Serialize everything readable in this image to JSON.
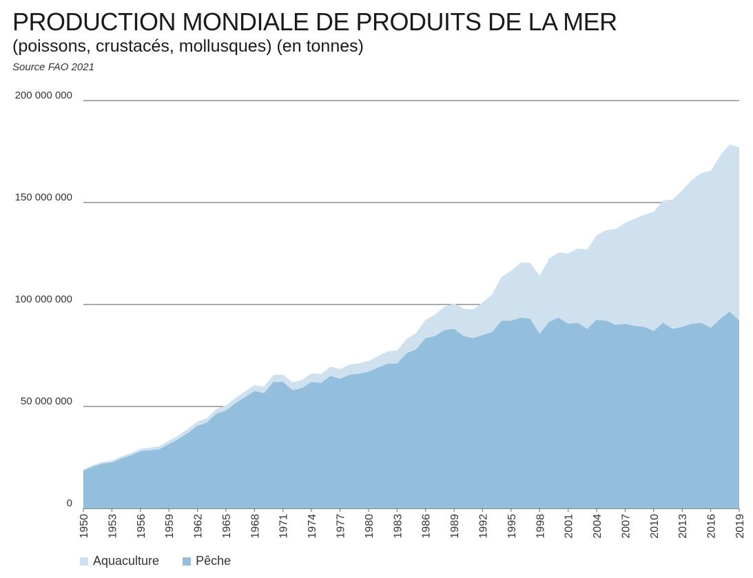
{
  "header": {
    "title": "PRODUCTION MONDIALE DE PRODUITS DE LA MER",
    "subtitle": "(poissons, crustacés, mollusques) (en tonnes)",
    "source": "Source FAO 2021"
  },
  "chart_data": {
    "type": "area",
    "stacked": true,
    "x": [
      1950,
      1951,
      1952,
      1953,
      1954,
      1955,
      1956,
      1957,
      1958,
      1959,
      1960,
      1961,
      1962,
      1963,
      1964,
      1965,
      1966,
      1967,
      1968,
      1969,
      1970,
      1971,
      1972,
      1973,
      1974,
      1975,
      1976,
      1977,
      1978,
      1979,
      1980,
      1981,
      1982,
      1983,
      1984,
      1985,
      1986,
      1987,
      1988,
      1989,
      1990,
      1991,
      1992,
      1993,
      1994,
      1995,
      1996,
      1997,
      1998,
      1999,
      2000,
      2001,
      2002,
      2003,
      2004,
      2005,
      2006,
      2007,
      2008,
      2009,
      2010,
      2011,
      2012,
      2013,
      2014,
      2015,
      2016,
      2017,
      2018,
      2019
    ],
    "x_tick_labels": [
      "1950",
      "1953",
      "1956",
      "1959",
      "1962",
      "1965",
      "1968",
      "1971",
      "1974",
      "1977",
      "1980",
      "1983",
      "1986",
      "1989",
      "1992",
      "1995",
      "1998",
      "2001",
      "2004",
      "2007",
      "2010",
      "2013",
      "2016",
      "2019"
    ],
    "y_tick_labels": [
      "0",
      "50 000 000",
      "100 000 000",
      "150 000 000",
      "200 000 000"
    ],
    "ylim": [
      0,
      200000000
    ],
    "grid": "horizontal",
    "legend_position": "bottom-left",
    "series": [
      {
        "name": "Pêche",
        "color": "#93bfdd",
        "values": [
          18500000,
          20500000,
          22000000,
          22500000,
          24500000,
          26000000,
          28000000,
          28500000,
          29000000,
          31500000,
          34000000,
          37000000,
          40500000,
          42000000,
          46500000,
          48000000,
          51500000,
          54500000,
          57500000,
          56500000,
          62000000,
          62000000,
          58000000,
          59000000,
          62000000,
          61500000,
          65000000,
          63500000,
          65500000,
          66000000,
          67000000,
          69000000,
          71000000,
          71000000,
          76000000,
          78000000,
          83500000,
          84500000,
          87500000,
          88000000,
          84500000,
          83500000,
          85000000,
          86500000,
          92000000,
          92000000,
          93500000,
          93000000,
          85500000,
          91500000,
          93500000,
          90500000,
          91000000,
          88000000,
          92500000,
          92000000,
          90000000,
          90500000,
          89500000,
          89000000,
          87000000,
          91000000,
          88000000,
          89000000,
          90500000,
          91000000,
          88500000,
          93000000,
          96500000,
          92000000
        ]
      },
      {
        "name": "Aquaculture",
        "color": "#cfe0ef",
        "values": [
          600000,
          700000,
          800000,
          900000,
          1000000,
          1100000,
          1200000,
          1300000,
          1500000,
          1700000,
          1800000,
          2000000,
          2100000,
          2200000,
          2300000,
          2500000,
          2700000,
          2900000,
          3000000,
          3200000,
          3400000,
          3600000,
          3800000,
          4000000,
          4200000,
          4400000,
          4600000,
          4800000,
          5000000,
          5200000,
          5300000,
          5700000,
          6000000,
          6400000,
          7000000,
          8000000,
          9000000,
          10500000,
          11500000,
          12500000,
          13500000,
          14000000,
          16000000,
          18500000,
          21500000,
          24500000,
          27000000,
          27500000,
          28500000,
          31000000,
          32000000,
          34500000,
          36500000,
          39000000,
          41500000,
          44500000,
          47000000,
          49500000,
          52500000,
          55000000,
          58500000,
          60000000,
          63500000,
          67000000,
          70500000,
          73500000,
          77000000,
          80000000,
          82000000,
          85000000
        ]
      }
    ]
  }
}
